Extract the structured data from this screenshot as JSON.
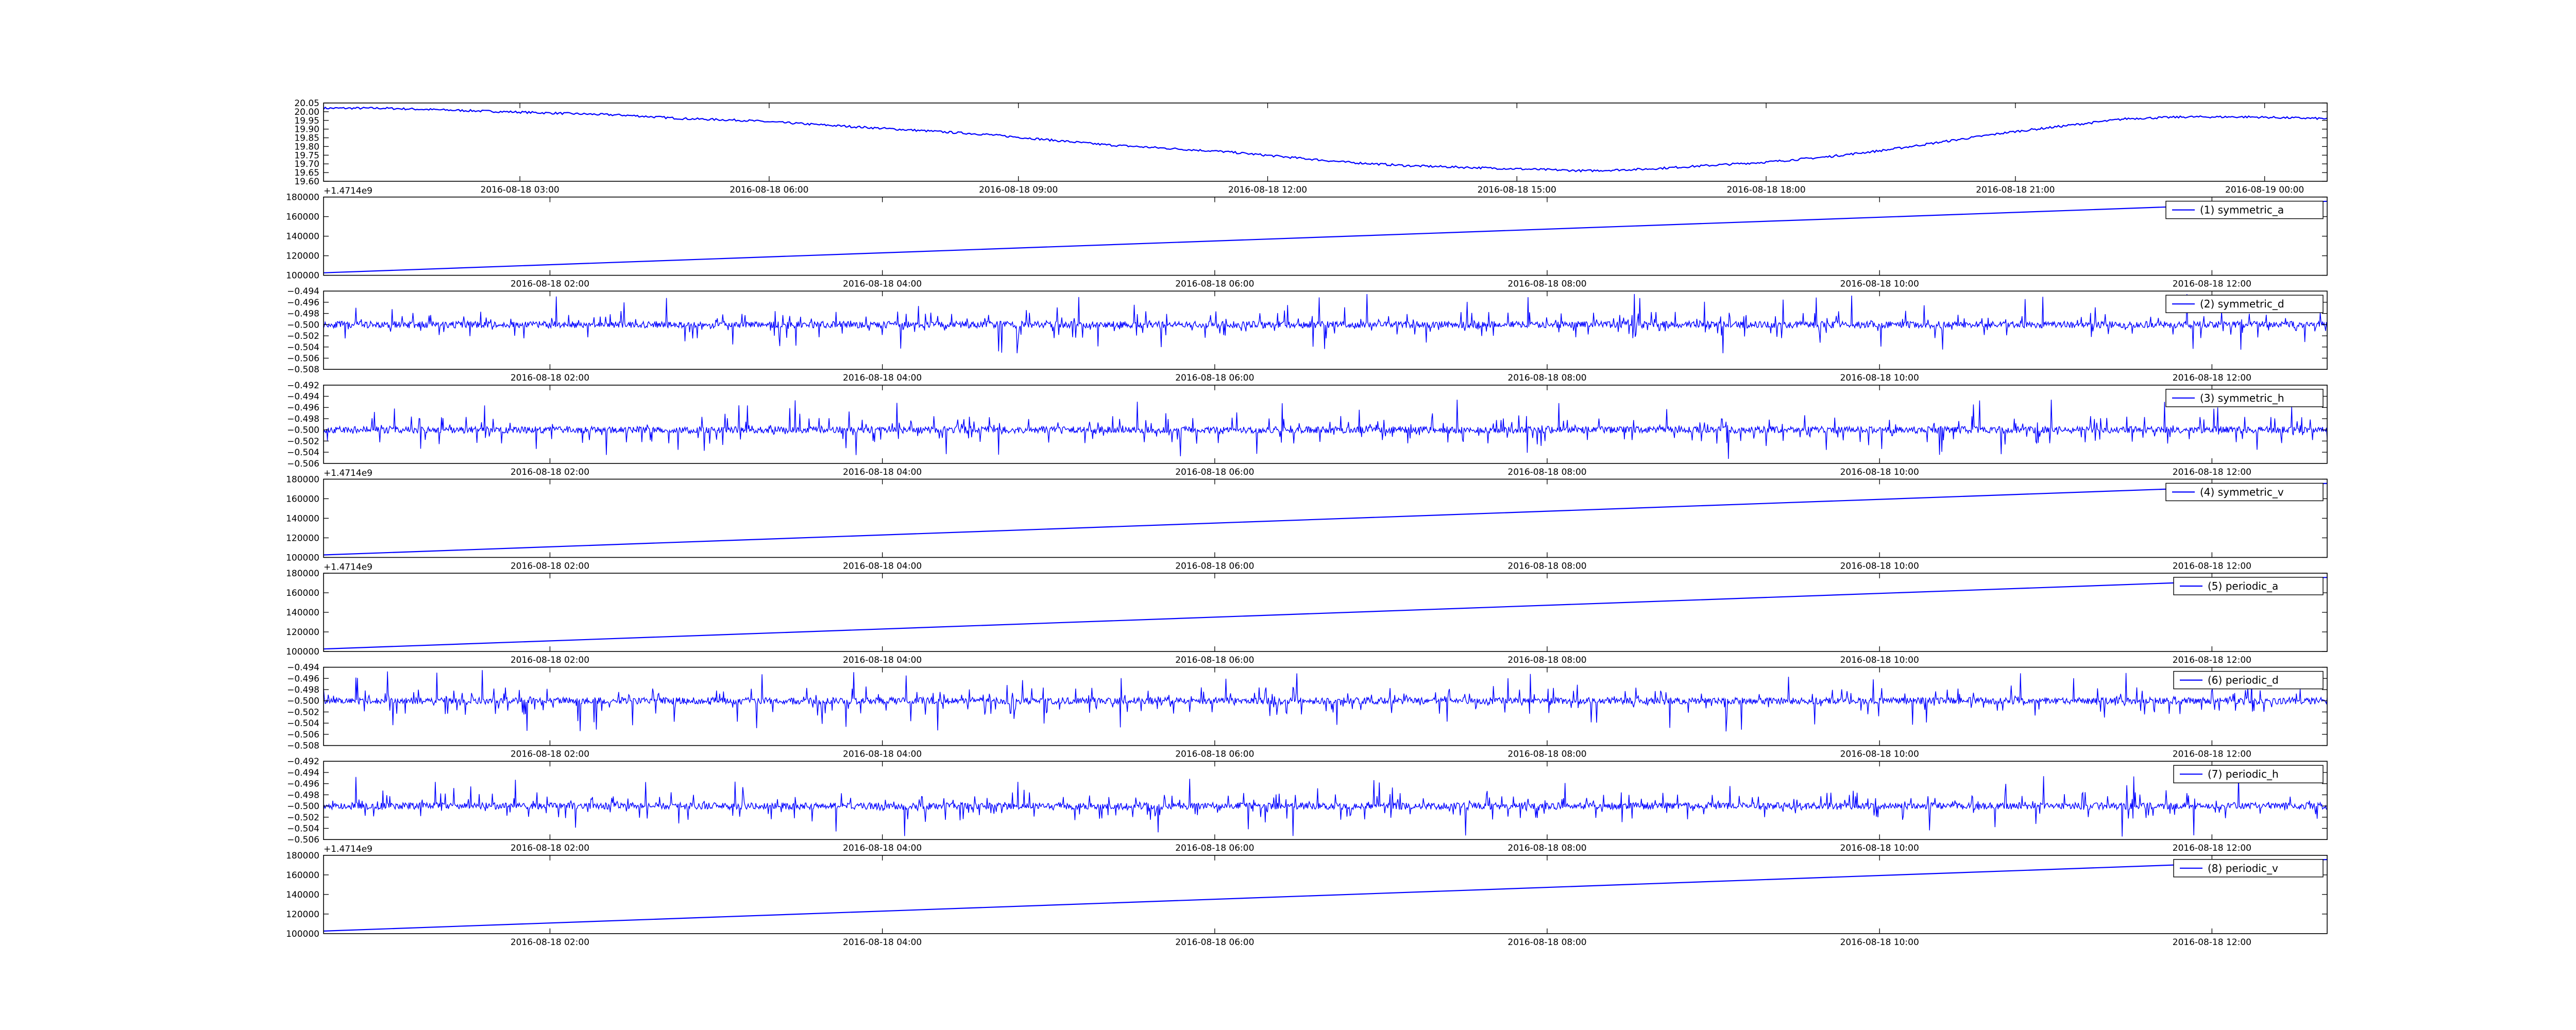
{
  "chart_data": [
    {
      "id": "raw",
      "type": "line",
      "color": "#0000ff",
      "ylim": [
        19.6,
        20.05
      ],
      "yticks": [
        "19.60",
        "19.65",
        "19.70",
        "19.75",
        "19.80",
        "19.85",
        "19.90",
        "19.95",
        "20.00",
        "20.05"
      ],
      "xticks": [
        "2016-08-18 03:00",
        "2016-08-18 06:00",
        "2016-08-18 09:00",
        "2016-08-18 12:00",
        "2016-08-18 15:00",
        "2016-08-18 18:00",
        "2016-08-18 21:00",
        "2016-08-19 00:00"
      ],
      "offset_label": "+1.4714e9",
      "legend": "",
      "series": [
        {
          "x": [
            0,
            0.03,
            0.06,
            0.09,
            0.12,
            0.15,
            0.18,
            0.21,
            0.24,
            0.27,
            0.3,
            0.33,
            0.36,
            0.39,
            0.42,
            0.45,
            0.48,
            0.51,
            0.54,
            0.57,
            0.6,
            0.63,
            0.66,
            0.69,
            0.72,
            0.75,
            0.78,
            0.81,
            0.84,
            0.87,
            0.9,
            0.93,
            0.96,
            1.0
          ],
          "values": [
            20.02,
            20.02,
            20.01,
            20.0,
            19.99,
            19.98,
            19.96,
            19.95,
            19.93,
            19.91,
            19.89,
            19.87,
            19.84,
            19.81,
            19.79,
            19.77,
            19.74,
            19.71,
            19.69,
            19.68,
            19.67,
            19.66,
            19.67,
            19.69,
            19.71,
            19.74,
            19.78,
            19.83,
            19.88,
            19.92,
            19.96,
            19.97,
            19.97,
            19.96
          ]
        }
      ]
    },
    {
      "id": "symmetric_a",
      "type": "line",
      "color": "#0000ff",
      "ylim": [
        92000,
        185000
      ],
      "yticks": [
        "100000",
        "120000",
        "140000",
        "160000",
        "180000"
      ],
      "xticks": [
        "2016-08-18 02:00",
        "2016-08-18 04:00",
        "2016-08-18 06:00",
        "2016-08-18 08:00",
        "2016-08-18 10:00",
        "2016-08-18 12:00"
      ],
      "offset_label": "",
      "legend": "(1) symmetric_a",
      "series": [
        {
          "x": [
            0,
            1
          ],
          "values": [
            95000,
            180000
          ]
        }
      ]
    },
    {
      "id": "symmetric_d",
      "type": "line",
      "color": "#0000ff",
      "ylim": [
        -0.508,
        -0.494
      ],
      "yticks": [
        "−0.508",
        "−0.506",
        "−0.504",
        "−0.502",
        "−0.500",
        "−0.498",
        "−0.496",
        "−0.494"
      ],
      "xticks": [
        "2016-08-18 02:00",
        "2016-08-18 04:00",
        "2016-08-18 06:00",
        "2016-08-18 08:00",
        "2016-08-18 10:00",
        "2016-08-18 12:00"
      ],
      "offset_label": "",
      "legend": "(2) symmetric_d",
      "noise": {
        "center": -0.5,
        "spread": 0.0055,
        "seed": 11
      }
    },
    {
      "id": "symmetric_h",
      "type": "line",
      "color": "#0000ff",
      "ylim": [
        -0.506,
        -0.492
      ],
      "yticks": [
        "−0.506",
        "−0.504",
        "−0.502",
        "−0.500",
        "−0.498",
        "−0.496",
        "−0.494",
        "−0.492"
      ],
      "xticks": [
        "2016-08-18 02:00",
        "2016-08-18 04:00",
        "2016-08-18 06:00",
        "2016-08-18 08:00",
        "2016-08-18 10:00",
        "2016-08-18 12:00"
      ],
      "offset_label": "+1.4714e9",
      "legend": "(3) symmetric_h",
      "noise": {
        "center": -0.5,
        "spread": 0.0055,
        "seed": 23
      }
    },
    {
      "id": "symmetric_v",
      "type": "line",
      "color": "#0000ff",
      "ylim": [
        92000,
        185000
      ],
      "yticks": [
        "100000",
        "120000",
        "140000",
        "160000",
        "180000"
      ],
      "xticks": [
        "2016-08-18 02:00",
        "2016-08-18 04:00",
        "2016-08-18 06:00",
        "2016-08-18 08:00",
        "2016-08-18 10:00",
        "2016-08-18 12:00"
      ],
      "offset_label": "+1.4714e9",
      "legend": "(4) symmetric_v",
      "series": [
        {
          "x": [
            0,
            1
          ],
          "values": [
            95000,
            180000
          ]
        }
      ]
    },
    {
      "id": "periodic_a",
      "type": "line",
      "color": "#0000ff",
      "ylim": [
        92000,
        185000
      ],
      "yticks": [
        "100000",
        "120000",
        "140000",
        "160000",
        "180000"
      ],
      "xticks": [
        "2016-08-18 02:00",
        "2016-08-18 04:00",
        "2016-08-18 06:00",
        "2016-08-18 08:00",
        "2016-08-18 10:00",
        "2016-08-18 12:00"
      ],
      "offset_label": "",
      "legend": "(5) periodic_a",
      "series": [
        {
          "x": [
            0,
            1
          ],
          "values": [
            95000,
            180000
          ]
        }
      ]
    },
    {
      "id": "periodic_d",
      "type": "line",
      "color": "#0000ff",
      "ylim": [
        -0.508,
        -0.494
      ],
      "yticks": [
        "−0.508",
        "−0.506",
        "−0.504",
        "−0.502",
        "−0.500",
        "−0.498",
        "−0.496",
        "−0.494"
      ],
      "xticks": [
        "2016-08-18 02:00",
        "2016-08-18 04:00",
        "2016-08-18 06:00",
        "2016-08-18 08:00",
        "2016-08-18 10:00",
        "2016-08-18 12:00"
      ],
      "offset_label": "",
      "legend": "(6) periodic_d",
      "noise": {
        "center": -0.5,
        "spread": 0.0055,
        "seed": 37
      }
    },
    {
      "id": "periodic_h",
      "type": "line",
      "color": "#0000ff",
      "ylim": [
        -0.506,
        -0.492
      ],
      "yticks": [
        "−0.506",
        "−0.504",
        "−0.502",
        "−0.500",
        "−0.498",
        "−0.496",
        "−0.494",
        "−0.492"
      ],
      "xticks": [
        "2016-08-18 02:00",
        "2016-08-18 04:00",
        "2016-08-18 06:00",
        "2016-08-18 08:00",
        "2016-08-18 10:00",
        "2016-08-18 12:00"
      ],
      "offset_label": "+1.4714e9",
      "legend": "(7) periodic_h",
      "noise": {
        "center": -0.5,
        "spread": 0.0055,
        "seed": 51
      }
    },
    {
      "id": "periodic_v",
      "type": "line",
      "color": "#0000ff",
      "ylim": [
        92000,
        185000
      ],
      "yticks": [
        "100000",
        "120000",
        "140000",
        "160000",
        "180000"
      ],
      "xticks": [
        "2016-08-18 02:00",
        "2016-08-18 04:00",
        "2016-08-18 06:00",
        "2016-08-18 08:00",
        "2016-08-18 10:00",
        "2016-08-18 12:00"
      ],
      "offset_label": "",
      "legend": "(8) periodic_v",
      "series": [
        {
          "x": [
            0,
            1
          ],
          "values": [
            95000,
            180000
          ]
        }
      ]
    }
  ]
}
